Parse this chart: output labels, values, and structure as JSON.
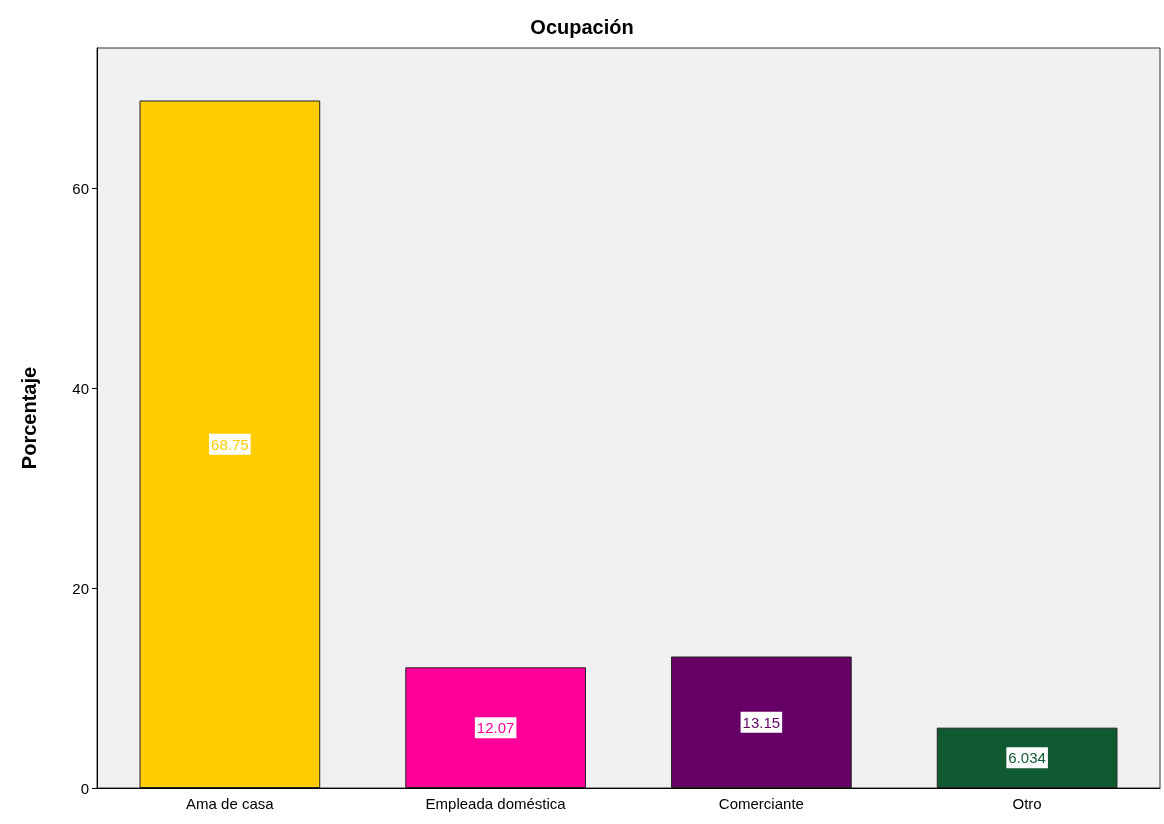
{
  "chart_data": {
    "type": "bar",
    "title": "Ocupación",
    "ylabel": "Porcentaje",
    "categories": [
      "Ama de casa",
      "Empleada doméstica",
      "Comerciante",
      "Otro"
    ],
    "values": [
      68.75,
      12.07,
      13.15,
      6.034
    ],
    "colors": [
      "#ffcc00",
      "#ff0099",
      "#660066",
      "#0f5a30"
    ],
    "ylim": [
      0,
      74
    ],
    "yticks": [
      0,
      20,
      40,
      60
    ],
    "grid": false,
    "data_labels": true
  }
}
